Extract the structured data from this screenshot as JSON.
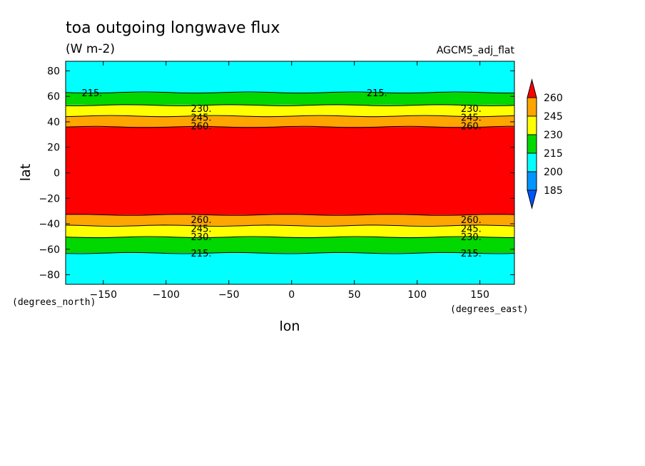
{
  "chart_data": {
    "type": "heatmap",
    "title": "toa outgoing longwave flux",
    "units": "(W m-2)",
    "experiment": "AGCM5_adj_flat",
    "xlabel": "lon",
    "ylabel": "lat",
    "x_units": "(degrees_east)",
    "y_units": "(degrees_north)",
    "xlim": [
      -180,
      177.5
    ],
    "ylim": [
      -87.5,
      87.5
    ],
    "x_ticks": [
      -150,
      -100,
      -50,
      0,
      50,
      100,
      150
    ],
    "y_ticks": [
      -80,
      -60,
      -40,
      -20,
      0,
      20,
      40,
      60,
      80
    ],
    "levels": [
      185,
      200,
      215,
      230,
      245,
      260
    ],
    "colors": [
      "#0095ff",
      "#00ffff",
      "#00d800",
      "#ffff00",
      "#ffa500",
      "#ff0000"
    ],
    "colorbar_labels": [
      "260",
      "245",
      "230",
      "215",
      "200",
      "185"
    ],
    "bands": [
      {
        "from": 63,
        "to": 87.5,
        "value_range": "200-215"
      },
      {
        "from": 53,
        "to": 63,
        "value_range": "215-230"
      },
      {
        "from": 44.5,
        "to": 53,
        "value_range": "230-245"
      },
      {
        "from": 36,
        "to": 44.5,
        "value_range": "245-260"
      },
      {
        "from": -33,
        "to": 36,
        "value_range": ">260"
      },
      {
        "from": -41.5,
        "to": -33,
        "value_range": "245-260"
      },
      {
        "from": -50.5,
        "to": -41.5,
        "value_range": "230-245"
      },
      {
        "from": -63,
        "to": -50.5,
        "value_range": "215-230"
      },
      {
        "from": -87.5,
        "to": -63,
        "value_range": "200-215"
      }
    ],
    "contour_labels": [
      {
        "text": "215.",
        "lon": -159,
        "lat": 63
      },
      {
        "text": "215.",
        "lon": 68,
        "lat": 63
      },
      {
        "text": "230.",
        "lon": -72,
        "lat": 50.5
      },
      {
        "text": "245.",
        "lon": -72,
        "lat": 43.5
      },
      {
        "text": "260.",
        "lon": -72,
        "lat": 37
      },
      {
        "text": "230.",
        "lon": 143,
        "lat": 50.5
      },
      {
        "text": "245.",
        "lon": 143,
        "lat": 43.5
      },
      {
        "text": "260.",
        "lon": 143,
        "lat": 37
      },
      {
        "text": "260.",
        "lon": -72,
        "lat": -36.5
      },
      {
        "text": "245.",
        "lon": -72,
        "lat": -43.5
      },
      {
        "text": "230.",
        "lon": -72,
        "lat": -50
      },
      {
        "text": "215.",
        "lon": -72,
        "lat": -63
      },
      {
        "text": "260.",
        "lon": 143,
        "lat": -36.5
      },
      {
        "text": "245.",
        "lon": 143,
        "lat": -43.5
      },
      {
        "text": "230.",
        "lon": 143,
        "lat": -50
      },
      {
        "text": "215.",
        "lon": 143,
        "lat": -63
      }
    ],
    "grid": false
  }
}
